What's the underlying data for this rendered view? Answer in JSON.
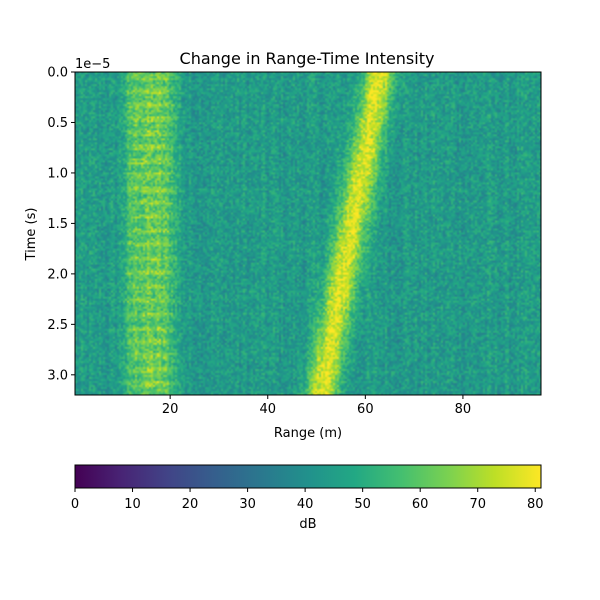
{
  "chart_data": {
    "type": "heatmap",
    "title": "Change in Range-Time Intensity",
    "xlabel": "Range (m)",
    "ylabel": "Time (s)",
    "y_offset_label": "1e−5",
    "xlim": [
      0.5,
      96
    ],
    "ylim": [
      3.2,
      0.0
    ],
    "x_ticks": [
      20,
      40,
      60,
      80
    ],
    "x_tick_labels": [
      "20",
      "40",
      "60",
      "80"
    ],
    "y_ticks": [
      0.0,
      0.5,
      1.0,
      1.5,
      2.0,
      2.5,
      3.0
    ],
    "y_tick_labels": [
      "0.0",
      "0.5",
      "1.0",
      "1.5",
      "2.0",
      "2.5",
      "3.0"
    ],
    "colormap": "viridis",
    "background_level_db": 44,
    "static_band": {
      "range_m": [
        10,
        22
      ],
      "level_db": 62,
      "time_s_e5": [
        0.0,
        3.2
      ]
    },
    "moving_target": {
      "range_at_start_m": 63,
      "range_at_end_m": 51,
      "time_start_s_e5": 0.0,
      "time_end_s_e5": 3.2,
      "width_m": 6,
      "peak_db": 78
    },
    "colorbar": {
      "label": "dB",
      "min": 0,
      "max": 81,
      "ticks": [
        0,
        10,
        20,
        30,
        40,
        50,
        60,
        70,
        80
      ],
      "tick_labels": [
        "0",
        "10",
        "20",
        "30",
        "40",
        "50",
        "60",
        "70",
        "80"
      ]
    }
  }
}
